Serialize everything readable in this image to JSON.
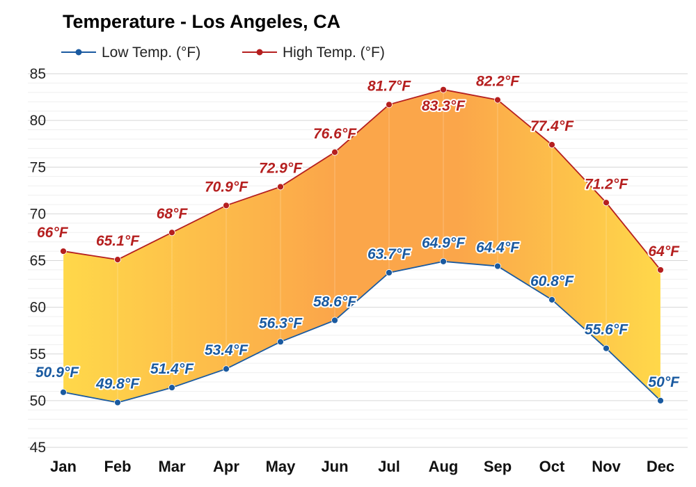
{
  "chart_data": {
    "type": "area",
    "title": "Temperature - Los Angeles, CA",
    "categories": [
      "Jan",
      "Feb",
      "Mar",
      "Apr",
      "May",
      "Jun",
      "Jul",
      "Aug",
      "Sep",
      "Oct",
      "Nov",
      "Dec"
    ],
    "series": [
      {
        "name": "Low Temp. (°F)",
        "color": "#1a5aa0",
        "values": [
          50.9,
          49.8,
          51.4,
          53.4,
          56.3,
          58.6,
          63.7,
          64.9,
          64.4,
          60.8,
          55.6,
          50
        ],
        "labels": [
          "50.9°F",
          "49.8°F",
          "51.4°F",
          "53.4°F",
          "56.3°F",
          "58.6°F",
          "63.7°F",
          "64.9°F",
          "64.4°F",
          "60.8°F",
          "55.6°F",
          "50°F"
        ]
      },
      {
        "name": "High Temp. (°F)",
        "color": "#b51f1f",
        "values": [
          66,
          65.1,
          68,
          70.9,
          72.9,
          76.6,
          81.7,
          83.3,
          82.2,
          77.4,
          71.2,
          64
        ],
        "labels": [
          "66°F",
          "65.1°F",
          "68°F",
          "70.9°F",
          "72.9°F",
          "76.6°F",
          "81.7°F",
          "83.3°F",
          "82.2°F",
          "77.4°F",
          "71.2°F",
          "64°F"
        ]
      }
    ],
    "ylim": [
      45,
      85
    ],
    "yticks": [
      "45",
      "50",
      "55",
      "60",
      "65",
      "70",
      "75",
      "80",
      "85"
    ],
    "xlabel": "",
    "ylabel": "",
    "grid": true,
    "legend": "top-left",
    "fill_colors": {
      "cool": "#ffd84a",
      "warm": "#fba64a"
    }
  }
}
